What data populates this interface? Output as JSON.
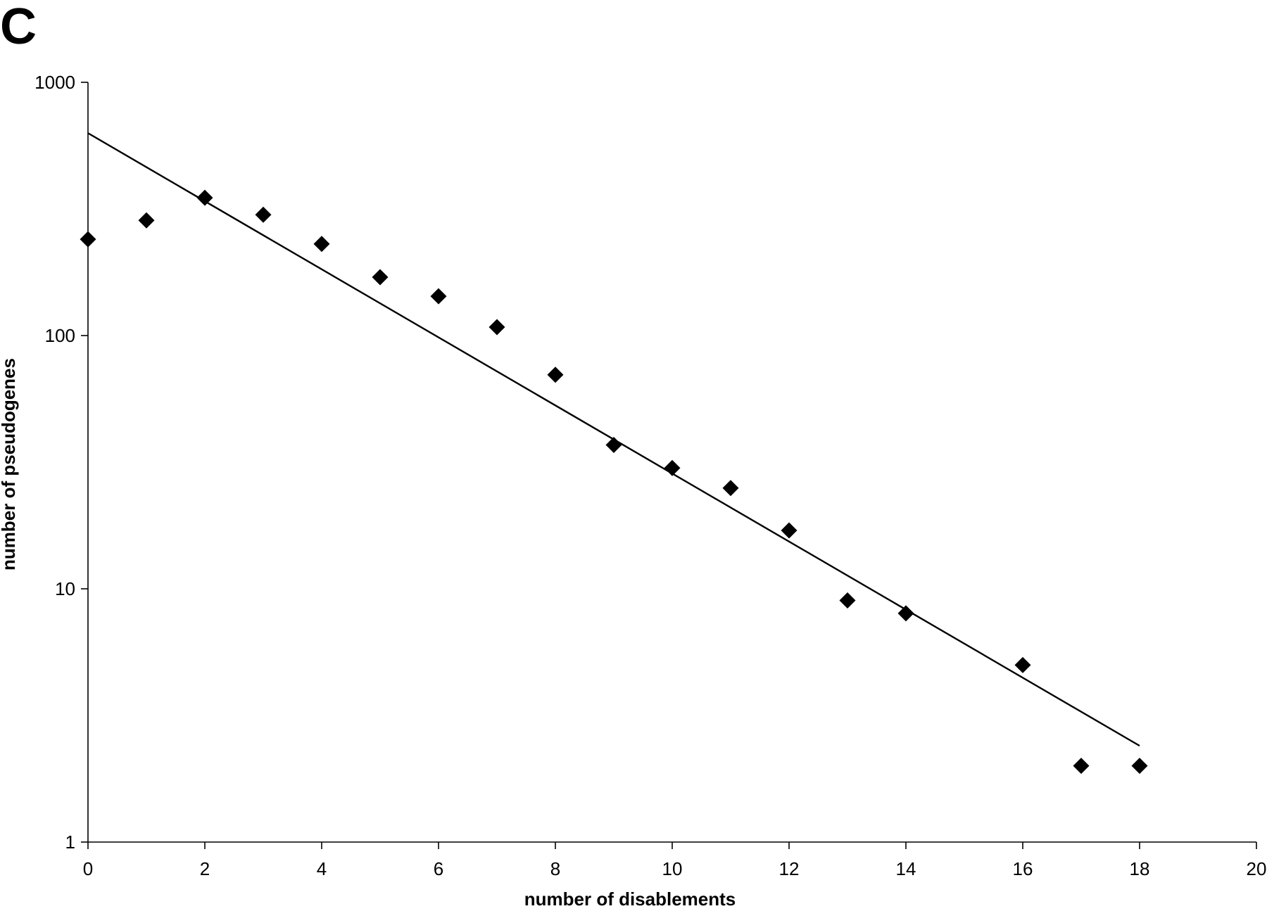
{
  "panel_label": "C",
  "chart_data": {
    "type": "scatter",
    "title": "",
    "xlabel": "number of disablements",
    "ylabel": "number of pseudogenes",
    "xlim": [
      0,
      20
    ],
    "ylim": [
      1,
      1000
    ],
    "y_scale": "log",
    "grid": false,
    "legend": "none",
    "x_ticks": [
      "0",
      "2",
      "4",
      "6",
      "8",
      "10",
      "12",
      "14",
      "16",
      "18",
      "20"
    ],
    "y_ticks": [
      "1",
      "10",
      "100",
      "1000"
    ],
    "series": [
      {
        "marker": "diamond",
        "color": "#000000",
        "x": [
          0,
          1,
          2,
          3,
          4,
          5,
          6,
          7,
          8,
          9,
          10,
          11,
          12,
          13,
          14,
          16,
          17,
          18
        ],
        "y": [
          240,
          285,
          350,
          300,
          230,
          170,
          143,
          108,
          70,
          37,
          30,
          25,
          17,
          9,
          8,
          5,
          2,
          2
        ]
      }
    ],
    "trendline": {
      "type": "exponential",
      "color": "#000000",
      "x": [
        0,
        18
      ],
      "y": [
        630,
        2.4
      ]
    }
  }
}
